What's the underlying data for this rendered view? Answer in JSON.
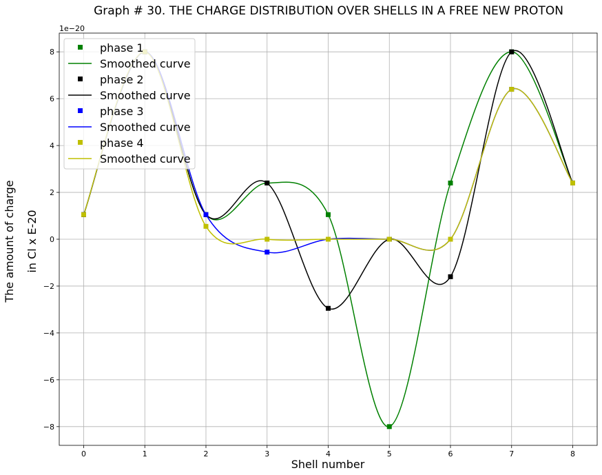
{
  "chart_data": {
    "type": "line",
    "title": "Graph # 30. THE CHARGE DISTRIBUTION OVER SHELLS IN A FREE NEW PROTON",
    "xlabel": "Shell number",
    "ylabel_line1": "The amount of charge",
    "ylabel_line2": "in Cl x E-20",
    "y_offset_text": "1e−20",
    "xlim": [
      -0.4,
      8.4
    ],
    "ylim": [
      -8.8,
      8.8
    ],
    "x_ticks": [
      0,
      1,
      2,
      3,
      4,
      5,
      6,
      7,
      8
    ],
    "y_ticks": [
      -8,
      -6,
      -4,
      -2,
      0,
      2,
      4,
      6,
      8
    ],
    "y_tick_labels": [
      "−8",
      "−6",
      "−4",
      "−2",
      "0",
      "2",
      "4",
      "6",
      "8"
    ],
    "grid": true,
    "legend_position": "top-left",
    "x": [
      0,
      1,
      2,
      3,
      4,
      5,
      6,
      7,
      8
    ],
    "series": [
      {
        "name": "phase 1",
        "curve_label": "Smoothed curve",
        "color": "#008000",
        "values": [
          1.05,
          8,
          1.05,
          2.4,
          1.05,
          -8,
          2.4,
          8,
          2.4
        ]
      },
      {
        "name": "phase 2",
        "curve_label": "Smoothed curve",
        "color": "#000000",
        "values": [
          1.05,
          8,
          1.05,
          2.4,
          -2.95,
          0,
          -1.6,
          8,
          2.4
        ]
      },
      {
        "name": "phase 3",
        "curve_label": "Smoothed curve",
        "color": "#0000ff",
        "values": [
          1.05,
          8,
          1.05,
          -0.55,
          0,
          0,
          0,
          6.4,
          2.4
        ]
      },
      {
        "name": "phase 4",
        "curve_label": "Smoothed curve",
        "color": "#bfbf00",
        "values": [
          1.05,
          8,
          0.55,
          0,
          0,
          0,
          0,
          6.4,
          2.4
        ]
      }
    ]
  }
}
